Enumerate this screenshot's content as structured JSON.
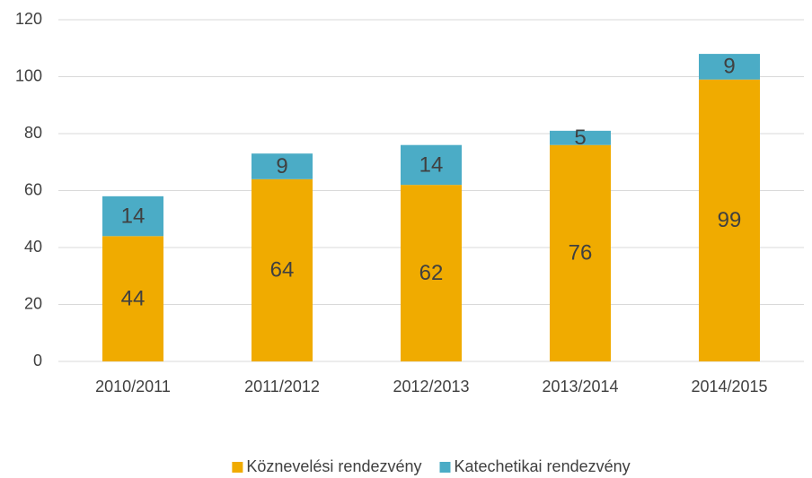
{
  "chart_data": {
    "type": "bar",
    "stacked": true,
    "categories": [
      "2010/2011",
      "2011/2012",
      "2012/2013",
      "2013/2014",
      "2014/2015"
    ],
    "series": [
      {
        "name": "Köznevelési rendezvény",
        "color": "#f0ab00",
        "values": [
          44,
          64,
          62,
          76,
          99
        ]
      },
      {
        "name": "Katechetikai rendezvény",
        "color": "#4bacc6",
        "values": [
          14,
          9,
          14,
          5,
          9
        ]
      }
    ],
    "ylim": [
      0,
      120
    ],
    "yticks": [
      0,
      20,
      40,
      60,
      80,
      100,
      120
    ],
    "grid": true,
    "legend": "bottom"
  }
}
